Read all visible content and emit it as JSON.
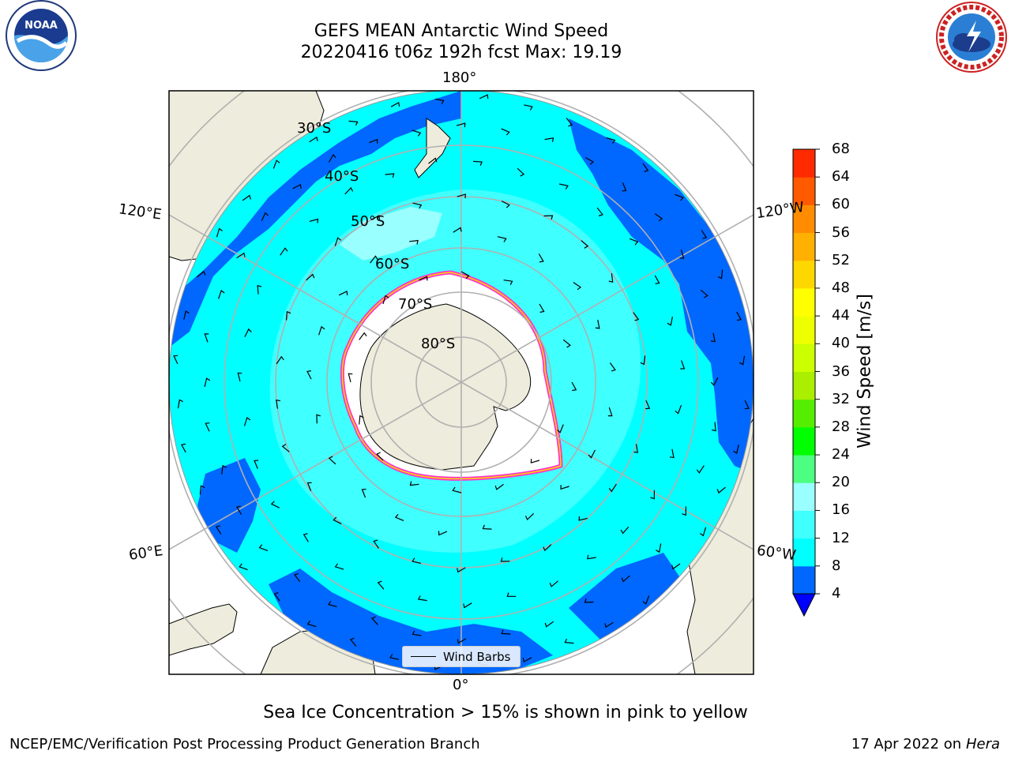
{
  "title_line1": "GEFS MEAN Antarctic Wind Speed",
  "title_line2": "20220416 t06z 192h fcst   Max: 19.19",
  "lon_labels": {
    "top": "180°",
    "bottom": "0°",
    "upper_left": "120°E",
    "upper_right": "120°W",
    "lower_left": "60°E",
    "lower_right": "60°W"
  },
  "lat_labels": [
    "30°S",
    "40°S",
    "50°S",
    "60°S",
    "70°S",
    "80°S"
  ],
  "legend_label": "Wind Barbs",
  "colorbar": {
    "label": "Wind Speed [m/s]",
    "ticks": [
      "4",
      "8",
      "12",
      "16",
      "20",
      "24",
      "28",
      "32",
      "36",
      "40",
      "44",
      "48",
      "52",
      "56",
      "60",
      "64",
      "68"
    ],
    "colors": [
      "#0067ff",
      "#00ffff",
      "#40ffff",
      "#99ffff",
      "#4dff80",
      "#00ff00",
      "#55ee00",
      "#aaee00",
      "#ccff00",
      "#eeff00",
      "#ffff00",
      "#ffd700",
      "#ffb000",
      "#ff8c00",
      "#ff5a00",
      "#ff2a00"
    ],
    "under_color": "#0000ff"
  },
  "note": "Sea Ice Concentration > 15% is shown in pink to yellow",
  "footer_left": "NCEP/EMC/Verification Post Processing Product Generation Branch",
  "footer_date": "17 Apr 2022 on ",
  "footer_host": "Hera",
  "logos": {
    "left": "noaa-logo",
    "right": "nws-logo"
  }
}
